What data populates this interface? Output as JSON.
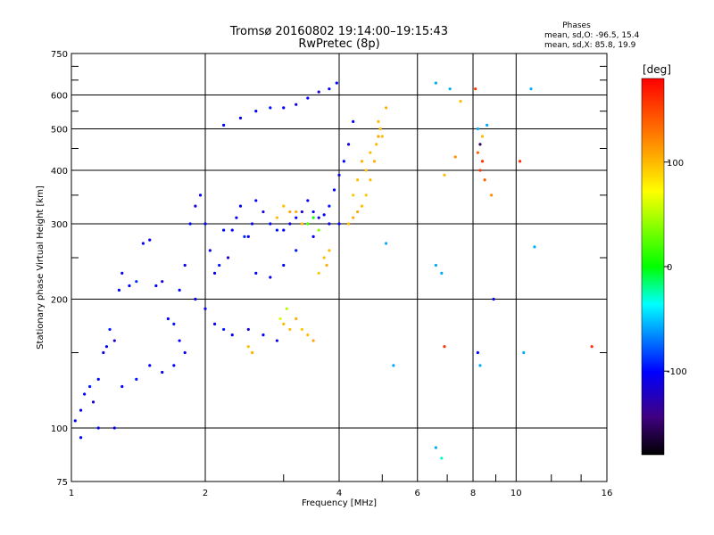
{
  "chart_data": {
    "type": "scatter",
    "title": "Tromsø 20160802 19:14:00–19:15:43",
    "subtitle": "RwPretec (8p)",
    "xlabel": "Frequency [MHz]",
    "ylabel": "Stationary phase Virtual Height [km]",
    "x_scale": "log",
    "y_scale": "log",
    "xlim": [
      1,
      16
    ],
    "ylim": [
      75,
      750
    ],
    "x_ticks": [
      1,
      2,
      4,
      6,
      8,
      10,
      16
    ],
    "x_tick_labels": [
      "1",
      "2",
      "4",
      "6",
      "8",
      "10",
      "16"
    ],
    "y_ticks": [
      75,
      100,
      200,
      300,
      400,
      500,
      600,
      750
    ],
    "y_tick_labels": [
      "75",
      "100",
      "200",
      "300",
      "400",
      "500",
      "600",
      "750"
    ],
    "grid": true,
    "phase_stats": {
      "title": "Phases",
      "line_o": "mean, sd,O: -96.5, 15.4",
      "line_x": "mean, sd,X:  85.8, 19.9"
    },
    "colorbar": {
      "label": "[deg]",
      "range": [
        -180,
        180
      ],
      "ticks": [
        100,
        0,
        -100
      ],
      "tick_labels": [
        "100",
        "0",
        "-100"
      ],
      "colors": [
        "#ff0000",
        "#ffff00",
        "#00ff00",
        "#00ffff",
        "#0000ff",
        "#000000"
      ]
    },
    "series": [
      {
        "description_free": true,
        "points": [
          [
            1.02,
            104,
            -100
          ],
          [
            1.05,
            110,
            -105
          ],
          [
            1.07,
            120,
            -100
          ],
          [
            1.1,
            125,
            -95
          ],
          [
            1.12,
            115,
            -110
          ],
          [
            1.15,
            130,
            -100
          ],
          [
            1.18,
            150,
            -105
          ],
          [
            1.2,
            155,
            -100
          ],
          [
            1.22,
            170,
            -95
          ],
          [
            1.25,
            160,
            -110
          ],
          [
            1.28,
            210,
            -100
          ],
          [
            1.3,
            230,
            -105
          ],
          [
            1.35,
            215,
            -100
          ],
          [
            1.4,
            220,
            -90
          ],
          [
            1.45,
            270,
            -100
          ],
          [
            1.5,
            275,
            -105
          ],
          [
            1.55,
            215,
            -100
          ],
          [
            1.6,
            220,
            -110
          ],
          [
            1.65,
            180,
            -100
          ],
          [
            1.7,
            175,
            -95
          ],
          [
            1.75,
            210,
            -100
          ],
          [
            1.8,
            240,
            -105
          ],
          [
            1.85,
            300,
            -100
          ],
          [
            1.9,
            330,
            -110
          ],
          [
            1.95,
            350,
            -100
          ],
          [
            2.0,
            300,
            -100
          ],
          [
            2.05,
            260,
            -105
          ],
          [
            2.1,
            230,
            -100
          ],
          [
            2.15,
            240,
            -95
          ],
          [
            2.2,
            290,
            -100
          ],
          [
            2.25,
            250,
            -110
          ],
          [
            2.3,
            290,
            -100
          ],
          [
            2.35,
            310,
            -105
          ],
          [
            2.4,
            330,
            -100
          ],
          [
            2.45,
            280,
            -90
          ],
          [
            2.5,
            280,
            -100
          ],
          [
            2.55,
            300,
            -105
          ],
          [
            2.6,
            340,
            -100
          ],
          [
            2.7,
            320,
            -110
          ],
          [
            2.8,
            300,
            -100
          ],
          [
            2.9,
            290,
            -95
          ],
          [
            3.0,
            290,
            -100
          ],
          [
            3.1,
            300,
            -105
          ],
          [
            3.2,
            310,
            -100
          ],
          [
            3.3,
            320,
            -110
          ],
          [
            3.4,
            340,
            -100
          ],
          [
            3.5,
            320,
            -100
          ],
          [
            3.6,
            310,
            -105
          ],
          [
            3.7,
            315,
            -100
          ],
          [
            3.8,
            330,
            -95
          ],
          [
            3.9,
            360,
            -100
          ],
          [
            4.0,
            390,
            -105
          ],
          [
            4.1,
            420,
            -100
          ],
          [
            4.2,
            460,
            -110
          ],
          [
            4.3,
            520,
            -100
          ],
          [
            2.2,
            510,
            -100
          ],
          [
            2.4,
            530,
            -105
          ],
          [
            2.6,
            550,
            -100
          ],
          [
            2.8,
            560,
            -95
          ],
          [
            3.0,
            560,
            -100
          ],
          [
            3.2,
            570,
            -105
          ],
          [
            3.4,
            590,
            -100
          ],
          [
            3.6,
            610,
            -110
          ],
          [
            3.8,
            620,
            -100
          ],
          [
            3.95,
            640,
            -100
          ],
          [
            1.9,
            200,
            -100
          ],
          [
            2.0,
            190,
            -105
          ],
          [
            2.1,
            175,
            -100
          ],
          [
            2.2,
            170,
            -95
          ],
          [
            2.3,
            165,
            -100
          ],
          [
            2.5,
            170,
            -110
          ],
          [
            2.7,
            165,
            -100
          ],
          [
            2.9,
            160,
            -105
          ],
          [
            1.8,
            150,
            -100
          ],
          [
            1.7,
            140,
            -100
          ],
          [
            1.6,
            135,
            -105
          ],
          [
            1.5,
            140,
            -100
          ],
          [
            1.4,
            130,
            -95
          ],
          [
            1.3,
            125,
            -100
          ],
          [
            1.25,
            100,
            -100
          ],
          [
            1.15,
            100,
            -105
          ],
          [
            1.05,
            95,
            -100
          ],
          [
            2.6,
            230,
            -100
          ],
          [
            2.8,
            225,
            -105
          ],
          [
            3.0,
            240,
            -100
          ],
          [
            3.2,
            260,
            -95
          ],
          [
            3.5,
            280,
            -100
          ],
          [
            3.8,
            300,
            -105
          ],
          [
            4.0,
            300,
            -100
          ],
          [
            1.75,
            160,
            -100
          ]
        ]
      },
      {
        "description_free": true,
        "points": [
          [
            4.2,
            300,
            100
          ],
          [
            4.3,
            310,
            105
          ],
          [
            4.4,
            320,
            110
          ],
          [
            4.5,
            330,
            100
          ],
          [
            4.6,
            350,
            95
          ],
          [
            4.7,
            380,
            100
          ],
          [
            4.8,
            420,
            105
          ],
          [
            4.85,
            460,
            100
          ],
          [
            4.9,
            480,
            110
          ],
          [
            4.95,
            500,
            100
          ],
          [
            4.6,
            400,
            100
          ],
          [
            4.5,
            420,
            105
          ],
          [
            4.4,
            380,
            100
          ],
          [
            4.3,
            350,
            95
          ],
          [
            4.7,
            440,
            100
          ],
          [
            3.3,
            300,
            100
          ],
          [
            3.2,
            320,
            105
          ],
          [
            3.0,
            330,
            100
          ],
          [
            3.1,
            320,
            110
          ],
          [
            2.9,
            310,
            100
          ],
          [
            3.1,
            170,
            100
          ],
          [
            3.2,
            180,
            105
          ],
          [
            3.0,
            175,
            100
          ],
          [
            3.3,
            170,
            95
          ],
          [
            3.4,
            165,
            100
          ],
          [
            3.5,
            160,
            110
          ],
          [
            2.5,
            155,
            100
          ],
          [
            2.55,
            150,
            105
          ],
          [
            3.7,
            250,
            100
          ],
          [
            3.75,
            240,
            105
          ],
          [
            3.8,
            260,
            100
          ],
          [
            3.6,
            230,
            95
          ],
          [
            5.0,
            480,
            100
          ],
          [
            5.1,
            560,
            105
          ],
          [
            4.9,
            520,
            100
          ],
          [
            3.4,
            300,
            20
          ],
          [
            3.5,
            310,
            0
          ],
          [
            3.6,
            290,
            40
          ],
          [
            2.95,
            180,
            60
          ],
          [
            3.05,
            190,
            50
          ]
        ]
      },
      {
        "description_free": true,
        "points": [
          [
            6.6,
            640,
            -60
          ],
          [
            6.6,
            90,
            -60
          ],
          [
            6.8,
            85,
            -30
          ],
          [
            6.9,
            390,
            100
          ],
          [
            6.9,
            155,
            160
          ],
          [
            7.1,
            620,
            -60
          ],
          [
            7.3,
            430,
            120
          ],
          [
            7.5,
            580,
            100
          ],
          [
            8.1,
            620,
            160
          ],
          [
            8.2,
            500,
            -60
          ],
          [
            8.3,
            460,
            -140
          ],
          [
            8.2,
            440,
            140
          ],
          [
            8.3,
            400,
            160
          ],
          [
            8.4,
            420,
            160
          ],
          [
            8.5,
            380,
            140
          ],
          [
            8.2,
            150,
            -100
          ],
          [
            8.3,
            140,
            -60
          ],
          [
            8.6,
            510,
            -60
          ],
          [
            8.8,
            350,
            120
          ],
          [
            8.9,
            200,
            -100
          ],
          [
            10.2,
            420,
            160
          ],
          [
            10.4,
            150,
            -60
          ],
          [
            10.8,
            620,
            -60
          ],
          [
            11.0,
            265,
            -60
          ],
          [
            14.8,
            155,
            160
          ],
          [
            6.6,
            240,
            -60
          ],
          [
            6.8,
            230,
            -60
          ],
          [
            5.1,
            270,
            -60
          ],
          [
            5.3,
            140,
            -60
          ],
          [
            8.4,
            480,
            100
          ]
        ]
      }
    ]
  }
}
